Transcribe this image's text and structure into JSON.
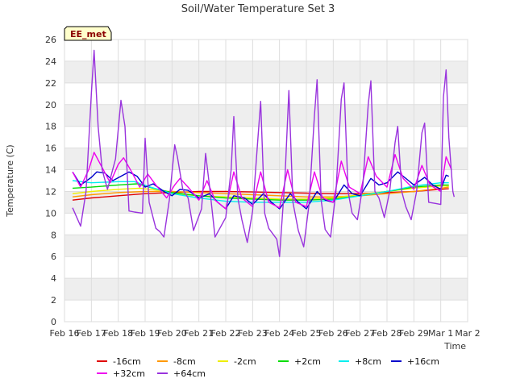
{
  "chart_data": {
    "type": "line",
    "title": "Soil/Water Temperature Set 3",
    "xlabel": "Time",
    "ylabel": "Temperature (C)",
    "badge": "EE_met",
    "ylim": [
      0,
      26
    ],
    "yticks": [
      0,
      2,
      4,
      6,
      8,
      10,
      12,
      14,
      16,
      18,
      20,
      22,
      24,
      26
    ],
    "xlim": [
      0,
      15
    ],
    "xticks": [
      "Feb 16",
      "Feb 17",
      "Feb 18",
      "Feb 19",
      "Feb 20",
      "Feb 21",
      "Feb 22",
      "Feb 23",
      "Feb 24",
      "Feb 25",
      "Feb 26",
      "Feb 27",
      "Feb 28",
      "Feb 29",
      "Mar 1",
      "Mar 2"
    ],
    "grid": true,
    "legend_position": "bottom",
    "series": [
      {
        "name": "-16cm",
        "color": "#e00000",
        "points": [
          [
            0.3,
            11.2
          ],
          [
            1,
            11.4
          ],
          [
            2,
            11.6
          ],
          [
            3,
            11.8
          ],
          [
            4,
            11.9
          ],
          [
            5,
            12.0
          ],
          [
            6,
            12.0
          ],
          [
            7,
            11.95
          ],
          [
            8,
            11.9
          ],
          [
            9,
            11.85
          ],
          [
            10,
            11.8
          ],
          [
            11,
            11.8
          ],
          [
            12,
            11.9
          ],
          [
            13,
            12.0
          ],
          [
            14,
            12.2
          ],
          [
            14.3,
            12.25
          ]
        ]
      },
      {
        "name": "-8cm",
        "color": "#ff9900",
        "points": [
          [
            0.3,
            11.5
          ],
          [
            1,
            11.7
          ],
          [
            2,
            11.9
          ],
          [
            3,
            12.0
          ],
          [
            4,
            12.0
          ],
          [
            5,
            11.9
          ],
          [
            6,
            11.8
          ],
          [
            7,
            11.7
          ],
          [
            8,
            11.6
          ],
          [
            9,
            11.5
          ],
          [
            10,
            11.5
          ],
          [
            11,
            11.6
          ],
          [
            12,
            11.8
          ],
          [
            13,
            12.0
          ],
          [
            14,
            12.3
          ],
          [
            14.3,
            12.4
          ]
        ]
      },
      {
        "name": "-2cm",
        "color": "#eeee00",
        "points": [
          [
            0.3,
            11.8
          ],
          [
            1,
            12.0
          ],
          [
            2,
            12.2
          ],
          [
            2.8,
            12.3
          ],
          [
            3.5,
            12.1
          ],
          [
            4,
            11.8
          ],
          [
            5,
            11.6
          ],
          [
            6,
            11.5
          ],
          [
            7,
            11.4
          ],
          [
            8,
            11.3
          ],
          [
            9,
            11.3
          ],
          [
            10,
            11.4
          ],
          [
            11,
            11.7
          ],
          [
            12,
            12.0
          ],
          [
            13,
            12.3
          ],
          [
            14,
            12.5
          ],
          [
            14.3,
            12.5
          ]
        ]
      },
      {
        "name": "+2cm",
        "color": "#00dd00",
        "points": [
          [
            0.3,
            12.3
          ],
          [
            1,
            12.4
          ],
          [
            2,
            12.6
          ],
          [
            2.7,
            12.7
          ],
          [
            3.3,
            12.3
          ],
          [
            4,
            11.9
          ],
          [
            5,
            11.6
          ],
          [
            6,
            11.4
          ],
          [
            7,
            11.3
          ],
          [
            8,
            11.2
          ],
          [
            9,
            11.2
          ],
          [
            10,
            11.3
          ],
          [
            11,
            11.6
          ],
          [
            12,
            12.0
          ],
          [
            13,
            12.4
          ],
          [
            14,
            12.6
          ],
          [
            14.3,
            12.6
          ]
        ]
      },
      {
        "name": "+8cm",
        "color": "#00eeee",
        "points": [
          [
            0.3,
            13.0
          ],
          [
            1,
            12.8
          ],
          [
            2,
            12.9
          ],
          [
            2.6,
            12.9
          ],
          [
            3.2,
            12.4
          ],
          [
            4,
            11.8
          ],
          [
            5,
            11.4
          ],
          [
            6,
            11.1
          ],
          [
            7,
            11.0
          ],
          [
            8,
            11.0
          ],
          [
            9,
            11.0
          ],
          [
            10,
            11.2
          ],
          [
            11,
            11.6
          ],
          [
            12,
            12.0
          ],
          [
            13,
            12.5
          ],
          [
            14,
            12.8
          ],
          [
            14.3,
            12.8
          ]
        ]
      },
      {
        "name": "+16cm",
        "color": "#0000cc",
        "points": [
          [
            0.3,
            13.8
          ],
          [
            0.6,
            12.6
          ],
          [
            1,
            13.3
          ],
          [
            1.2,
            13.8
          ],
          [
            1.5,
            13.7
          ],
          [
            1.8,
            13.0
          ],
          [
            2.1,
            13.4
          ],
          [
            2.4,
            13.8
          ],
          [
            2.7,
            13.4
          ],
          [
            3.0,
            12.4
          ],
          [
            3.3,
            12.7
          ],
          [
            3.7,
            12.0
          ],
          [
            4.0,
            11.6
          ],
          [
            4.3,
            12.2
          ],
          [
            4.6,
            12.1
          ],
          [
            5.0,
            11.4
          ],
          [
            5.4,
            11.8
          ],
          [
            5.7,
            11.0
          ],
          [
            6.0,
            10.4
          ],
          [
            6.3,
            11.6
          ],
          [
            6.7,
            11.4
          ],
          [
            7.0,
            10.8
          ],
          [
            7.4,
            11.8
          ],
          [
            7.7,
            11.0
          ],
          [
            8.0,
            10.4
          ],
          [
            8.4,
            11.8
          ],
          [
            8.7,
            11.0
          ],
          [
            9.0,
            10.4
          ],
          [
            9.4,
            12.0
          ],
          [
            9.7,
            11.2
          ],
          [
            10.0,
            11.0
          ],
          [
            10.4,
            12.6
          ],
          [
            10.7,
            11.8
          ],
          [
            11.0,
            11.6
          ],
          [
            11.4,
            13.2
          ],
          [
            11.7,
            12.6
          ],
          [
            12.0,
            12.8
          ],
          [
            12.4,
            13.8
          ],
          [
            12.8,
            13.0
          ],
          [
            13.0,
            12.6
          ],
          [
            13.4,
            13.3
          ],
          [
            13.7,
            12.6
          ],
          [
            14.0,
            12.2
          ],
          [
            14.2,
            13.5
          ],
          [
            14.3,
            13.4
          ]
        ]
      },
      {
        "name": "+32cm",
        "color": "#ee00ee",
        "points": [
          [
            0.3,
            13.8
          ],
          [
            0.6,
            12.4
          ],
          [
            0.9,
            14.0
          ],
          [
            1.1,
            15.6
          ],
          [
            1.4,
            14.2
          ],
          [
            1.7,
            12.8
          ],
          [
            2.0,
            14.5
          ],
          [
            2.2,
            15.1
          ],
          [
            2.5,
            13.8
          ],
          [
            2.8,
            12.4
          ],
          [
            3.1,
            13.6
          ],
          [
            3.4,
            12.6
          ],
          [
            3.8,
            11.4
          ],
          [
            4.1,
            12.6
          ],
          [
            4.3,
            13.2
          ],
          [
            4.6,
            12.4
          ],
          [
            5.0,
            11.2
          ],
          [
            5.3,
            13.0
          ],
          [
            5.6,
            11.2
          ],
          [
            6.0,
            10.4
          ],
          [
            6.3,
            13.8
          ],
          [
            6.6,
            11.4
          ],
          [
            7.0,
            10.6
          ],
          [
            7.3,
            13.8
          ],
          [
            7.6,
            11.0
          ],
          [
            8.0,
            10.5
          ],
          [
            8.3,
            14.0
          ],
          [
            8.6,
            11.0
          ],
          [
            9.0,
            10.6
          ],
          [
            9.3,
            13.8
          ],
          [
            9.6,
            11.4
          ],
          [
            10.0,
            11.0
          ],
          [
            10.3,
            14.8
          ],
          [
            10.6,
            12.4
          ],
          [
            11.0,
            11.8
          ],
          [
            11.3,
            15.2
          ],
          [
            11.6,
            13.4
          ],
          [
            12.0,
            12.4
          ],
          [
            12.3,
            15.4
          ],
          [
            12.6,
            13.2
          ],
          [
            13.0,
            12.2
          ],
          [
            13.3,
            14.4
          ],
          [
            13.6,
            12.6
          ],
          [
            14.0,
            12.0
          ],
          [
            14.2,
            15.2
          ],
          [
            14.4,
            14.0
          ]
        ]
      },
      {
        "name": "+64cm",
        "color": "#9933dd",
        "points": [
          [
            0.3,
            10.5
          ],
          [
            0.6,
            8.8
          ],
          [
            0.8,
            12.0
          ],
          [
            1.0,
            21.0
          ],
          [
            1.1,
            25.0
          ],
          [
            1.25,
            18.0
          ],
          [
            1.4,
            14.0
          ],
          [
            1.6,
            12.2
          ],
          [
            1.9,
            15.0
          ],
          [
            2.1,
            20.4
          ],
          [
            2.25,
            18.0
          ],
          [
            2.4,
            10.2
          ],
          [
            2.6,
            10.1
          ],
          [
            2.9,
            10.0
          ],
          [
            3.0,
            16.9
          ],
          [
            3.15,
            11.0
          ],
          [
            3.4,
            8.6
          ],
          [
            3.55,
            8.3
          ],
          [
            3.7,
            7.8
          ],
          [
            3.9,
            11.2
          ],
          [
            4.1,
            16.3
          ],
          [
            4.2,
            15.2
          ],
          [
            4.4,
            12.2
          ],
          [
            4.6,
            11.4
          ],
          [
            4.8,
            8.4
          ],
          [
            5.1,
            10.4
          ],
          [
            5.25,
            15.5
          ],
          [
            5.4,
            12.4
          ],
          [
            5.6,
            7.8
          ],
          [
            6.0,
            9.6
          ],
          [
            6.2,
            14.0
          ],
          [
            6.3,
            18.9
          ],
          [
            6.45,
            11.4
          ],
          [
            6.6,
            9.4
          ],
          [
            6.8,
            7.3
          ],
          [
            7.0,
            10.2
          ],
          [
            7.2,
            17.0
          ],
          [
            7.3,
            20.3
          ],
          [
            7.45,
            10.0
          ],
          [
            7.6,
            8.6
          ],
          [
            7.9,
            7.6
          ],
          [
            8.0,
            6.0
          ],
          [
            8.2,
            13.0
          ],
          [
            8.35,
            21.3
          ],
          [
            8.5,
            11.0
          ],
          [
            8.7,
            8.4
          ],
          [
            8.9,
            6.9
          ],
          [
            9.1,
            10.8
          ],
          [
            9.3,
            19.0
          ],
          [
            9.4,
            22.3
          ],
          [
            9.55,
            11.2
          ],
          [
            9.7,
            8.5
          ],
          [
            9.9,
            7.8
          ],
          [
            10.1,
            12.0
          ],
          [
            10.3,
            20.5
          ],
          [
            10.4,
            22.0
          ],
          [
            10.55,
            12.0
          ],
          [
            10.7,
            10.0
          ],
          [
            10.9,
            9.4
          ],
          [
            11.1,
            12.5
          ],
          [
            11.3,
            20.0
          ],
          [
            11.4,
            22.2
          ],
          [
            11.55,
            12.0
          ],
          [
            11.7,
            11.4
          ],
          [
            11.9,
            9.6
          ],
          [
            12.1,
            12.0
          ],
          [
            12.3,
            16.5
          ],
          [
            12.4,
            18.0
          ],
          [
            12.55,
            12.0
          ],
          [
            12.7,
            10.6
          ],
          [
            12.9,
            9.4
          ],
          [
            13.1,
            12.0
          ],
          [
            13.3,
            17.4
          ],
          [
            13.4,
            18.3
          ],
          [
            13.55,
            11.0
          ],
          [
            13.8,
            10.9
          ],
          [
            14.0,
            10.8
          ],
          [
            14.1,
            20.7
          ],
          [
            14.2,
            23.2
          ],
          [
            14.3,
            17.0
          ],
          [
            14.45,
            12.0
          ],
          [
            14.5,
            11.5
          ]
        ]
      }
    ]
  }
}
